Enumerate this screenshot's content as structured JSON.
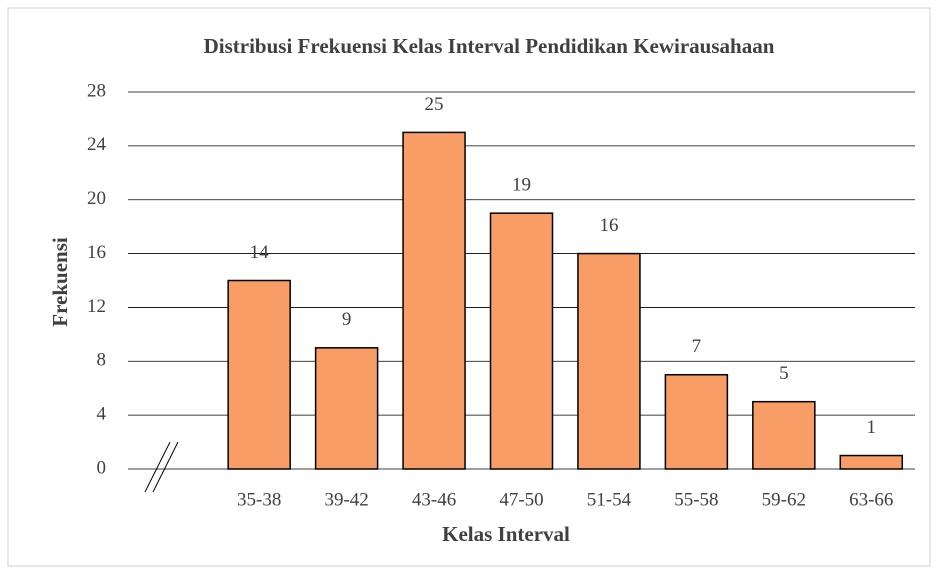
{
  "chart_data": {
    "type": "bar",
    "title": "Distribusi Frekuensi Kelas Interval Pendidikan Kewirausahaan",
    "x_label": "Kelas Interval",
    "y_label": "Frekuensi",
    "categories": [
      null,
      "35-38",
      "39-42",
      "43-46",
      "47-50",
      "51-54",
      "55-58",
      "59-62",
      "63-66"
    ],
    "values": [
      null,
      14,
      9,
      25,
      19,
      16,
      7,
      5,
      1
    ],
    "color": "#f79d65",
    "ylim": [
      0,
      28
    ],
    "yticks": [
      0,
      4,
      8,
      12,
      16,
      20,
      24,
      28
    ],
    "grid": true
  }
}
